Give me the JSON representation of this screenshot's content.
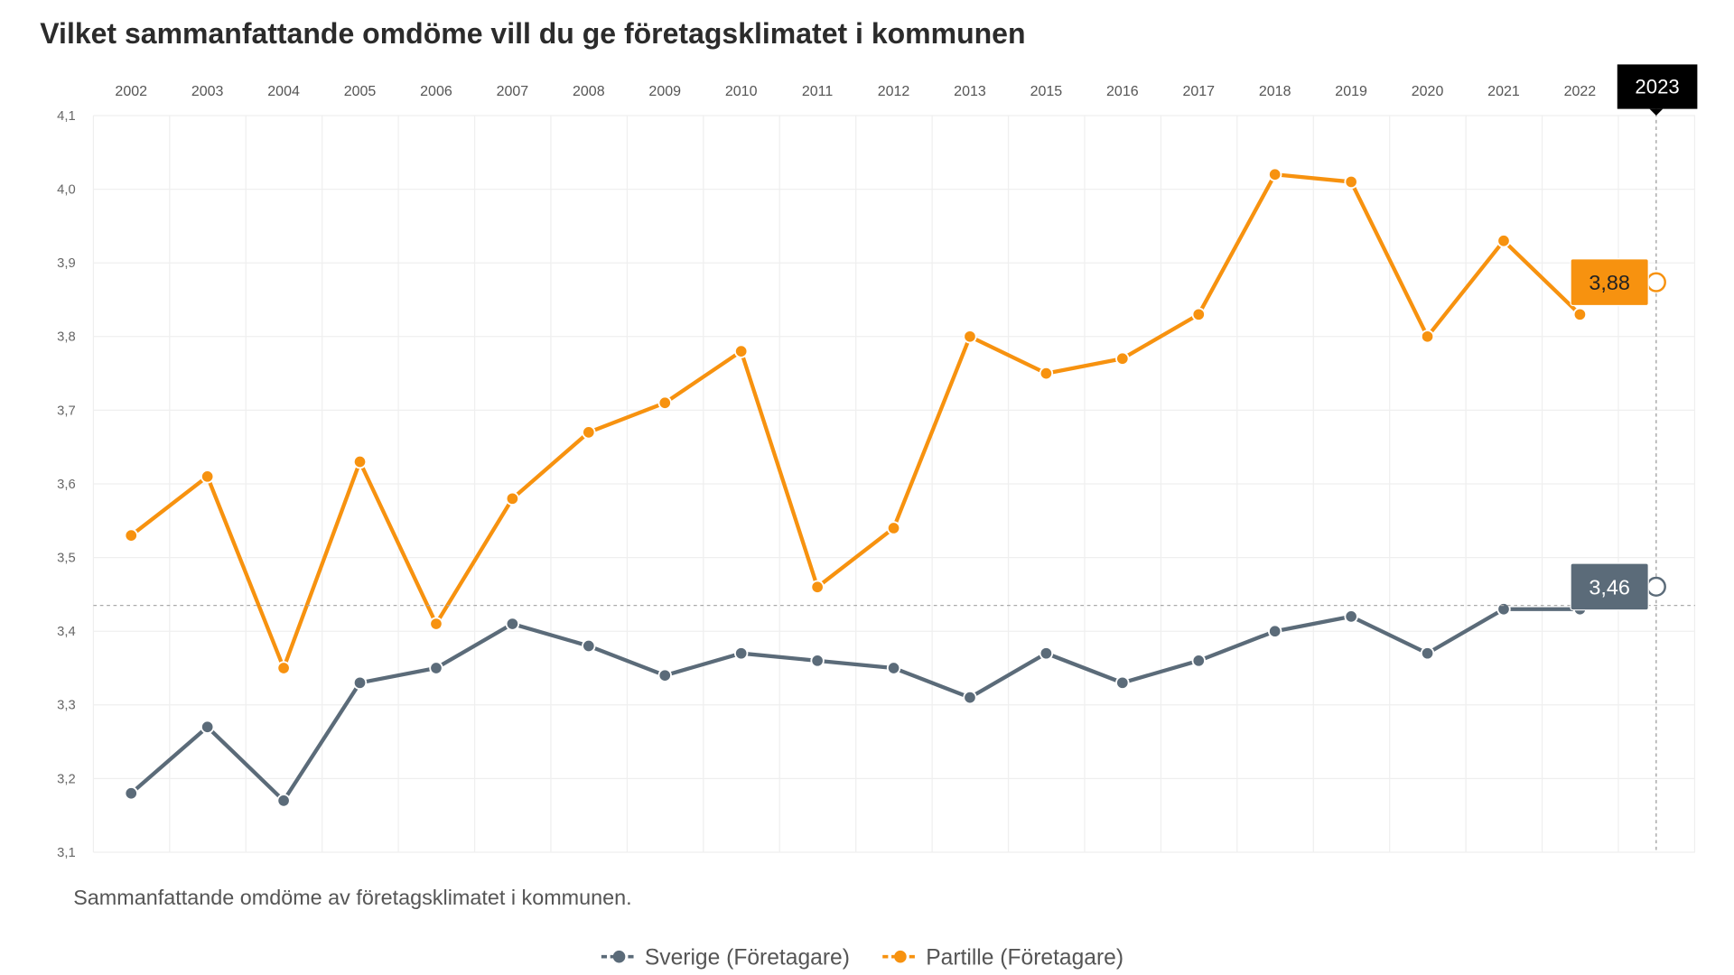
{
  "chart_data": {
    "type": "line",
    "title": "Vilket sammanfattande omdöme vill du ge företagsklimatet i kommunen",
    "caption": "Sammanfattande omdöme av företagsklimatet i kommunen.",
    "xlabel": "",
    "ylabel": "",
    "categories": [
      "2002",
      "2003",
      "2004",
      "2005",
      "2006",
      "2007",
      "2008",
      "2009",
      "2010",
      "2011",
      "2012",
      "2013",
      "2015",
      "2016",
      "2017",
      "2018",
      "2019",
      "2020",
      "2021",
      "2022",
      "2023"
    ],
    "y_ticks": [
      "3,1",
      "3,2",
      "3,3",
      "3,4",
      "3,5",
      "3,6",
      "3,7",
      "3,8",
      "3,9",
      "4,0",
      "4,1"
    ],
    "ylim": [
      3.1,
      4.1
    ],
    "grid": true,
    "legend_position": "bottom",
    "series": [
      {
        "name": "Sverige (Företagare)",
        "color": "#5b6b79",
        "values": [
          3.18,
          3.27,
          3.17,
          3.33,
          3.35,
          3.41,
          3.38,
          3.34,
          3.37,
          3.36,
          3.35,
          3.31,
          3.37,
          3.33,
          3.36,
          3.4,
          3.42,
          3.37,
          3.43,
          3.43,
          3.46
        ]
      },
      {
        "name": "Partille (Företagare)",
        "color": "#f7920f",
        "values": [
          3.53,
          3.61,
          3.35,
          3.63,
          3.41,
          3.58,
          3.67,
          3.71,
          3.78,
          3.46,
          3.54,
          3.8,
          3.75,
          3.77,
          3.83,
          4.02,
          4.01,
          3.8,
          3.93,
          3.83,
          3.88
        ]
      }
    ],
    "hover": {
      "category": "2023",
      "labels": [
        "3,46",
        "3,88"
      ]
    }
  }
}
